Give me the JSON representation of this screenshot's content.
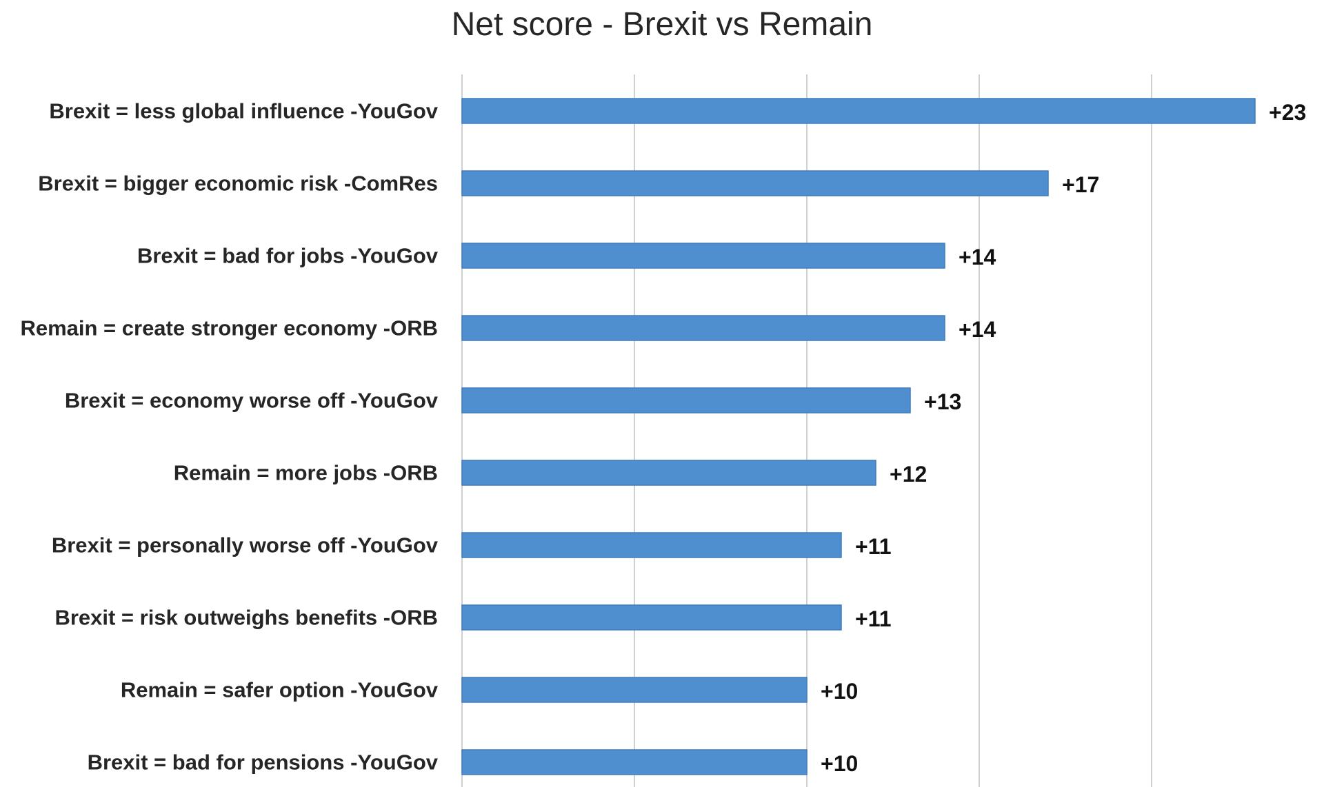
{
  "chart_data": {
    "type": "bar",
    "orientation": "horizontal",
    "title": "Net score - Brexit vs Remain",
    "xlabel": "",
    "ylabel": "",
    "categories": [
      "Brexit = less global influence -YouGov",
      "Brexit = bigger economic risk -ComRes",
      "Brexit = bad for jobs -YouGov",
      "Remain = create stronger economy -ORB",
      "Brexit = economy worse off -YouGov",
      "Remain = more jobs -ORB",
      "Brexit = personally worse off -YouGov",
      "Brexit = risk outweighs benefits -ORB",
      "Remain = safer option -YouGov",
      "Brexit = bad for pensions -YouGov"
    ],
    "values": [
      23,
      17,
      14,
      14,
      13,
      12,
      11,
      11,
      10,
      10
    ],
    "data_labels": [
      "+23",
      "+17",
      "+14",
      "+14",
      "+13",
      "+12",
      "+11",
      "+11",
      "+10",
      "+10"
    ],
    "xlim": [
      0,
      25
    ],
    "x_grid_step": 5,
    "grid": true,
    "legend": "none",
    "colors": {
      "bar": "#4f8fd0",
      "bar_edge": "#3f7cbd",
      "grid": "#d0d0d0"
    }
  }
}
